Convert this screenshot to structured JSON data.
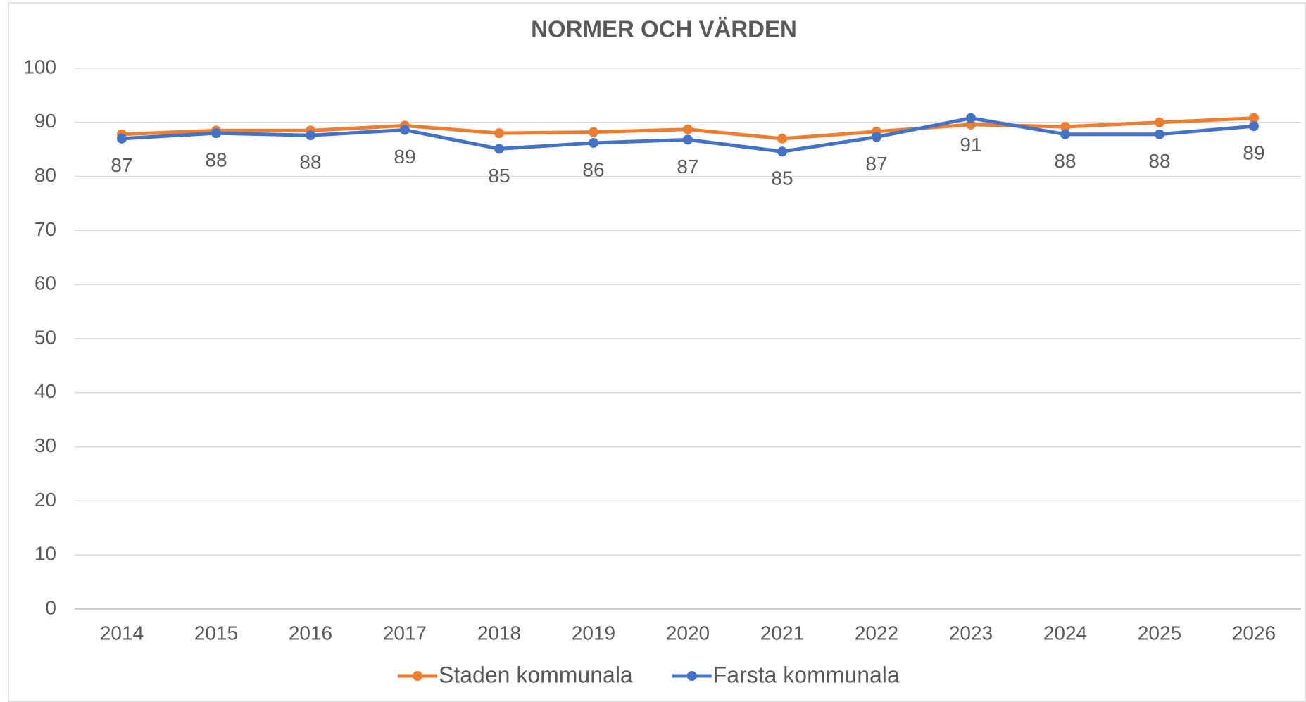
{
  "chart_data": {
    "type": "line",
    "title": "NORMER OCH VÄRDEN",
    "categories": [
      "2014",
      "2015",
      "2016",
      "2017",
      "2018",
      "2019",
      "2020",
      "2021",
      "2022",
      "2023",
      "2024",
      "2025",
      "2026"
    ],
    "series": [
      {
        "name": "Staden kommunala",
        "color": "#ed7d31",
        "values": [
          87.8,
          88.5,
          88.5,
          89.4,
          88.0,
          88.2,
          88.7,
          87.0,
          88.3,
          89.6,
          89.2,
          90.0,
          90.8
        ]
      },
      {
        "name": "Farsta kommunala",
        "color": "#4472c4",
        "values": [
          87.0,
          88.0,
          87.6,
          88.6,
          85.1,
          86.2,
          86.8,
          84.6,
          87.3,
          90.8,
          87.8,
          87.8,
          89.3
        ],
        "value_labels": [
          "87",
          "88",
          "88",
          "89",
          "85",
          "86",
          "87",
          "85",
          "87",
          "91",
          "88",
          "88",
          "89"
        ]
      }
    ],
    "ylim": [
      0,
      100
    ],
    "yticks": [
      0,
      10,
      20,
      30,
      40,
      50,
      60,
      70,
      80,
      90,
      100
    ],
    "grid": true,
    "legend": "bottom"
  }
}
